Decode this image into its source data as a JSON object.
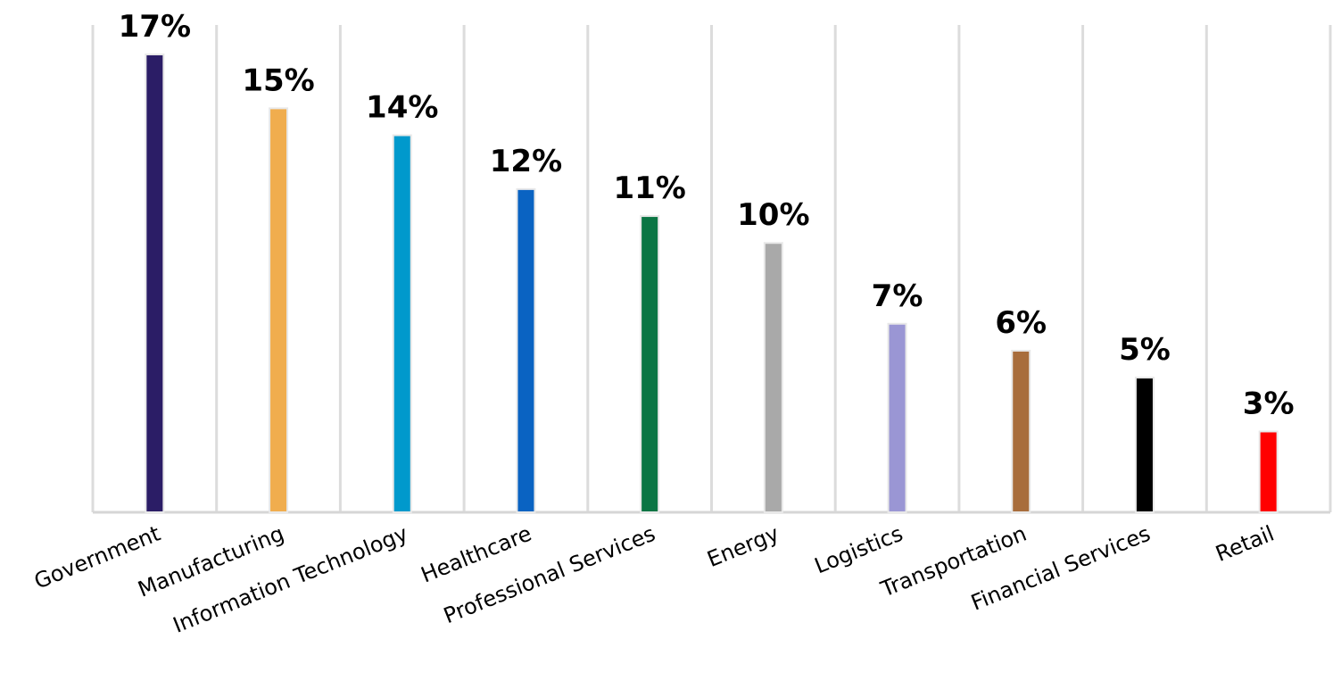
{
  "chart_data": {
    "type": "bar",
    "title": "",
    "xlabel": "",
    "ylabel": "",
    "ylim": [
      0,
      17
    ],
    "grid": "vertical",
    "legend": "none",
    "categories": [
      "Government",
      "Manufacturing",
      "Information Technology",
      "Healthcare",
      "Professional Services",
      "Energy",
      "Logistics",
      "Transportation",
      "Financial Services",
      "Retail"
    ],
    "values": [
      17,
      15,
      14,
      12,
      11,
      10,
      7,
      6,
      5,
      3
    ],
    "data_labels": [
      "17%",
      "15%",
      "14%",
      "12%",
      "11%",
      "10%",
      "7%",
      "6%",
      "5%",
      "3%"
    ],
    "colors": [
      "#2b1d66",
      "#f0ad4e",
      "#0099cc",
      "#0a63c2",
      "#0b7544",
      "#a9a9a9",
      "#9a96d4",
      "#a86d3c",
      "#000000",
      "#ff0000"
    ]
  }
}
